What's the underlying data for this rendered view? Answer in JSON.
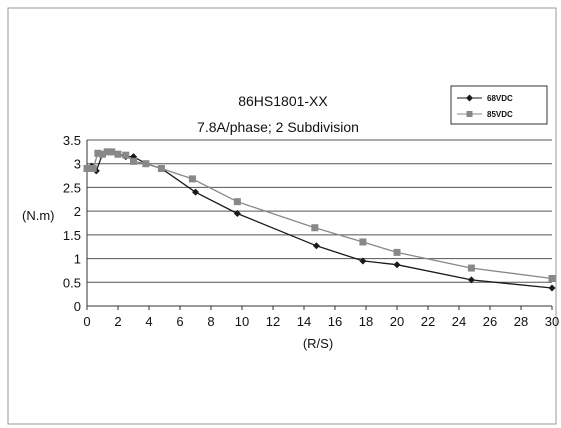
{
  "chart_data": {
    "type": "line",
    "title": "86HS1801-XX",
    "subtitle": "7.8A/phase; 2 Subdivision",
    "xlabel": "(R/S)",
    "ylabel": "(N.m)",
    "xlim": [
      0,
      30
    ],
    "ylim": [
      0,
      3.5
    ],
    "x_ticks": [
      0,
      2,
      4,
      6,
      8,
      10,
      12,
      14,
      16,
      18,
      20,
      22,
      24,
      26,
      28,
      30
    ],
    "y_ticks": [
      0,
      0.5,
      1,
      1.5,
      2,
      2.5,
      3,
      3.5
    ],
    "y_tick_labels": [
      "0",
      "0.5",
      "1",
      "1.5",
      "2",
      "2.5",
      "3",
      "3.5"
    ],
    "grid": "horizontal",
    "legend_position": "top-right",
    "series": [
      {
        "name": "68VDC",
        "marker": "diamond",
        "color": "#1a1a1a",
        "points": [
          [
            0,
            2.9
          ],
          [
            0.3,
            2.95
          ],
          [
            0.6,
            2.85
          ],
          [
            1.0,
            3.2
          ],
          [
            1.5,
            3.25
          ],
          [
            2.0,
            3.2
          ],
          [
            2.5,
            3.15
          ],
          [
            3.0,
            3.15
          ],
          [
            3.8,
            3.0
          ],
          [
            4.8,
            2.9
          ],
          [
            7.0,
            2.4
          ],
          [
            9.7,
            1.95
          ],
          [
            14.8,
            1.27
          ],
          [
            17.8,
            0.95
          ],
          [
            20.0,
            0.87
          ],
          [
            24.8,
            0.55
          ],
          [
            30.0,
            0.38
          ]
        ]
      },
      {
        "name": "85VDC",
        "marker": "square",
        "color": "#888888",
        "points": [
          [
            0,
            2.9
          ],
          [
            0.4,
            2.9
          ],
          [
            0.7,
            3.22
          ],
          [
            1.0,
            3.2
          ],
          [
            1.3,
            3.25
          ],
          [
            1.6,
            3.25
          ],
          [
            2.0,
            3.2
          ],
          [
            2.5,
            3.18
          ],
          [
            3.0,
            3.05
          ],
          [
            3.8,
            3.0
          ],
          [
            4.8,
            2.9
          ],
          [
            6.8,
            2.68
          ],
          [
            9.7,
            2.2
          ],
          [
            14.7,
            1.65
          ],
          [
            17.8,
            1.35
          ],
          [
            20.0,
            1.13
          ],
          [
            24.8,
            0.8
          ],
          [
            30.0,
            0.58
          ]
        ]
      }
    ]
  }
}
